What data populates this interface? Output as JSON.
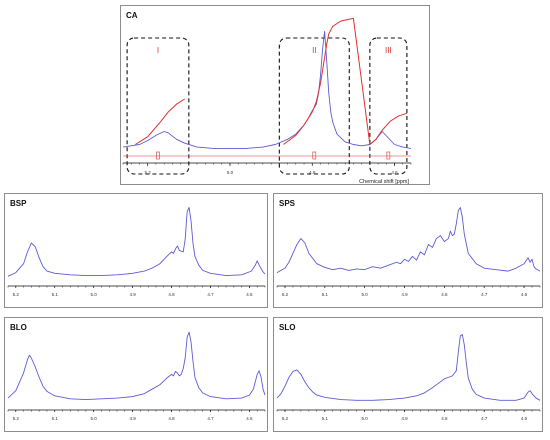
{
  "chart_data": [
    {
      "panel": "CA",
      "type": "line",
      "title": "CA",
      "xlabel": "Chemical shift [ppm]",
      "x_reversed": true,
      "xlim": [
        5.26,
        4.56
      ],
      "x_ticks": [
        "5.2",
        "5.0",
        "4.8",
        "4.6"
      ],
      "regions": [
        {
          "label": "I",
          "x_range": [
            5.25,
            5.1
          ]
        },
        {
          "label": "II",
          "x_range": [
            4.88,
            4.71
          ]
        },
        {
          "label": "III",
          "x_range": [
            4.66,
            4.57
          ]
        }
      ],
      "series": [
        {
          "color": "#5b5bd6",
          "x": [
            5.26,
            5.22,
            5.2,
            5.18,
            5.16,
            5.15,
            5.13,
            5.11,
            5.08,
            5.04,
            5.0,
            4.96,
            4.92,
            4.89,
            4.86,
            4.84,
            4.82,
            4.81,
            4.8,
            4.79,
            4.785,
            4.78,
            4.775,
            4.77,
            4.765,
            4.76,
            4.755,
            4.75,
            4.74,
            4.72,
            4.7,
            4.68,
            4.66,
            4.645,
            4.63,
            4.615,
            4.6,
            4.58,
            4.56
          ],
          "y": [
            0.03,
            0.05,
            0.08,
            0.12,
            0.15,
            0.14,
            0.09,
            0.06,
            0.03,
            0.02,
            0.02,
            0.02,
            0.03,
            0.05,
            0.09,
            0.13,
            0.2,
            0.25,
            0.31,
            0.36,
            0.44,
            0.58,
            0.78,
            0.92,
            0.7,
            0.45,
            0.3,
            0.22,
            0.13,
            0.07,
            0.05,
            0.04,
            0.05,
            0.09,
            0.15,
            0.1,
            0.05,
            0.03,
            0.02
          ]
        },
        {
          "color": "#e03030",
          "x": [
            5.23,
            5.2,
            5.17,
            5.15,
            5.13,
            5.11,
            4.87,
            4.84,
            4.82,
            4.8,
            4.79,
            4.78,
            4.77,
            4.765,
            4.76,
            4.75,
            4.73,
            4.7,
            4.66,
            4.645,
            4.63,
            4.61,
            4.59,
            4.57
          ],
          "y": [
            0.05,
            0.11,
            0.22,
            0.3,
            0.36,
            0.4,
            0.05,
            0.12,
            0.2,
            0.3,
            0.38,
            0.52,
            0.72,
            0.82,
            0.9,
            0.96,
            1.0,
            1.02,
            0.05,
            0.09,
            0.16,
            0.23,
            0.27,
            0.29
          ]
        }
      ]
    },
    {
      "panel": "BSP",
      "type": "line",
      "title": "BSP",
      "x_reversed": true,
      "xlim": [
        5.22,
        4.56
      ],
      "x_ticks": [
        "5.2",
        "5.1",
        "5.0",
        "4.9",
        "4.8",
        "4.7",
        "4.6"
      ],
      "series": [
        {
          "color": "#5b5bd6",
          "x": [
            5.22,
            5.2,
            5.18,
            5.17,
            5.16,
            5.15,
            5.14,
            5.13,
            5.12,
            5.1,
            5.06,
            5.02,
            4.98,
            4.94,
            4.9,
            4.87,
            4.85,
            4.83,
            4.81,
            4.8,
            4.795,
            4.79,
            4.785,
            4.78,
            4.77,
            4.765,
            4.76,
            4.755,
            4.75,
            4.745,
            4.74,
            4.73,
            4.72,
            4.7,
            4.66,
            4.62,
            4.595,
            4.585,
            4.58,
            4.575,
            4.565,
            4.56
          ],
          "y": [
            0.05,
            0.1,
            0.22,
            0.38,
            0.5,
            0.45,
            0.3,
            0.18,
            0.12,
            0.09,
            0.07,
            0.06,
            0.06,
            0.07,
            0.09,
            0.12,
            0.16,
            0.22,
            0.33,
            0.38,
            0.36,
            0.42,
            0.46,
            0.4,
            0.38,
            0.55,
            0.92,
            0.98,
            0.8,
            0.5,
            0.32,
            0.2,
            0.13,
            0.09,
            0.06,
            0.07,
            0.12,
            0.2,
            0.26,
            0.2,
            0.11,
            0.08
          ]
        }
      ]
    },
    {
      "panel": "SPS",
      "type": "line",
      "title": "SPS",
      "x_reversed": true,
      "xlim": [
        5.22,
        4.56
      ],
      "x_ticks": [
        "5.2",
        "5.1",
        "5.0",
        "4.9",
        "4.8",
        "4.7",
        "4.6"
      ],
      "series": [
        {
          "color": "#5b5bd6",
          "x": [
            5.22,
            5.2,
            5.19,
            5.18,
            5.17,
            5.16,
            5.15,
            5.14,
            5.12,
            5.1,
            5.08,
            5.06,
            5.04,
            5.02,
            5.0,
            4.98,
            4.96,
            4.94,
            4.92,
            4.91,
            4.9,
            4.89,
            4.88,
            4.87,
            4.86,
            4.85,
            4.84,
            4.83,
            4.82,
            4.81,
            4.8,
            4.79,
            4.785,
            4.78,
            4.775,
            4.77,
            4.765,
            4.76,
            4.755,
            4.75,
            4.74,
            4.72,
            4.7,
            4.67,
            4.64,
            4.62,
            4.6,
            4.59,
            4.585,
            4.58,
            4.575,
            4.57,
            4.56
          ],
          "y": [
            0.1,
            0.16,
            0.24,
            0.36,
            0.48,
            0.56,
            0.5,
            0.36,
            0.22,
            0.17,
            0.14,
            0.16,
            0.13,
            0.15,
            0.14,
            0.18,
            0.16,
            0.2,
            0.24,
            0.22,
            0.28,
            0.25,
            0.32,
            0.27,
            0.38,
            0.34,
            0.48,
            0.44,
            0.56,
            0.6,
            0.52,
            0.56,
            0.66,
            0.6,
            0.62,
            0.76,
            0.94,
            0.98,
            0.85,
            0.62,
            0.36,
            0.22,
            0.16,
            0.14,
            0.12,
            0.16,
            0.22,
            0.3,
            0.24,
            0.28,
            0.18,
            0.15,
            0.12
          ]
        }
      ]
    },
    {
      "panel": "BLO",
      "type": "line",
      "title": "BLO",
      "x_reversed": true,
      "xlim": [
        5.22,
        4.56
      ],
      "x_ticks": [
        "5.2",
        "5.1",
        "5.0",
        "4.9",
        "4.8",
        "4.7",
        "4.6"
      ],
      "series": [
        {
          "color": "#5b5bd6",
          "x": [
            5.22,
            5.2,
            5.18,
            5.17,
            5.165,
            5.16,
            5.15,
            5.14,
            5.13,
            5.12,
            5.1,
            5.06,
            5.02,
            4.98,
            4.94,
            4.9,
            4.87,
            4.85,
            4.83,
            4.81,
            4.8,
            4.795,
            4.79,
            4.785,
            4.78,
            4.775,
            4.77,
            4.765,
            4.76,
            4.755,
            4.75,
            4.745,
            4.74,
            4.73,
            4.72,
            4.7,
            4.66,
            4.62,
            4.6,
            4.59,
            4.58,
            4.575,
            4.57,
            4.565,
            4.56
          ],
          "y": [
            0.08,
            0.18,
            0.42,
            0.6,
            0.66,
            0.62,
            0.5,
            0.36,
            0.24,
            0.17,
            0.11,
            0.07,
            0.06,
            0.07,
            0.08,
            0.1,
            0.14,
            0.2,
            0.26,
            0.36,
            0.4,
            0.38,
            0.44,
            0.42,
            0.38,
            0.4,
            0.48,
            0.62,
            0.9,
            0.97,
            0.84,
            0.58,
            0.36,
            0.22,
            0.15,
            0.1,
            0.07,
            0.08,
            0.12,
            0.2,
            0.4,
            0.45,
            0.36,
            0.2,
            0.12
          ]
        }
      ]
    },
    {
      "panel": "SLO",
      "type": "line",
      "title": "SLO",
      "x_reversed": true,
      "xlim": [
        5.22,
        4.56
      ],
      "x_ticks": [
        "5.2",
        "5.1",
        "5.0",
        "4.9",
        "4.8",
        "4.7",
        "4.6"
      ],
      "series": [
        {
          "color": "#5b5bd6",
          "x": [
            5.22,
            5.21,
            5.2,
            5.19,
            5.18,
            5.17,
            5.16,
            5.15,
            5.14,
            5.13,
            5.12,
            5.1,
            5.06,
            5.02,
            4.98,
            4.94,
            4.9,
            4.87,
            4.85,
            4.83,
            4.81,
            4.8,
            4.79,
            4.78,
            4.77,
            4.765,
            4.76,
            4.755,
            4.75,
            4.745,
            4.74,
            4.73,
            4.72,
            4.7,
            4.66,
            4.62,
            4.6,
            4.595,
            4.59,
            4.585,
            4.58,
            4.57,
            4.56
          ],
          "y": [
            0.08,
            0.14,
            0.24,
            0.36,
            0.44,
            0.46,
            0.4,
            0.3,
            0.22,
            0.16,
            0.12,
            0.09,
            0.06,
            0.05,
            0.05,
            0.06,
            0.08,
            0.11,
            0.15,
            0.22,
            0.3,
            0.34,
            0.36,
            0.38,
            0.45,
            0.7,
            0.92,
            0.94,
            0.8,
            0.56,
            0.35,
            0.2,
            0.13,
            0.08,
            0.05,
            0.05,
            0.08,
            0.12,
            0.16,
            0.18,
            0.14,
            0.08,
            0.05
          ]
        }
      ]
    }
  ]
}
